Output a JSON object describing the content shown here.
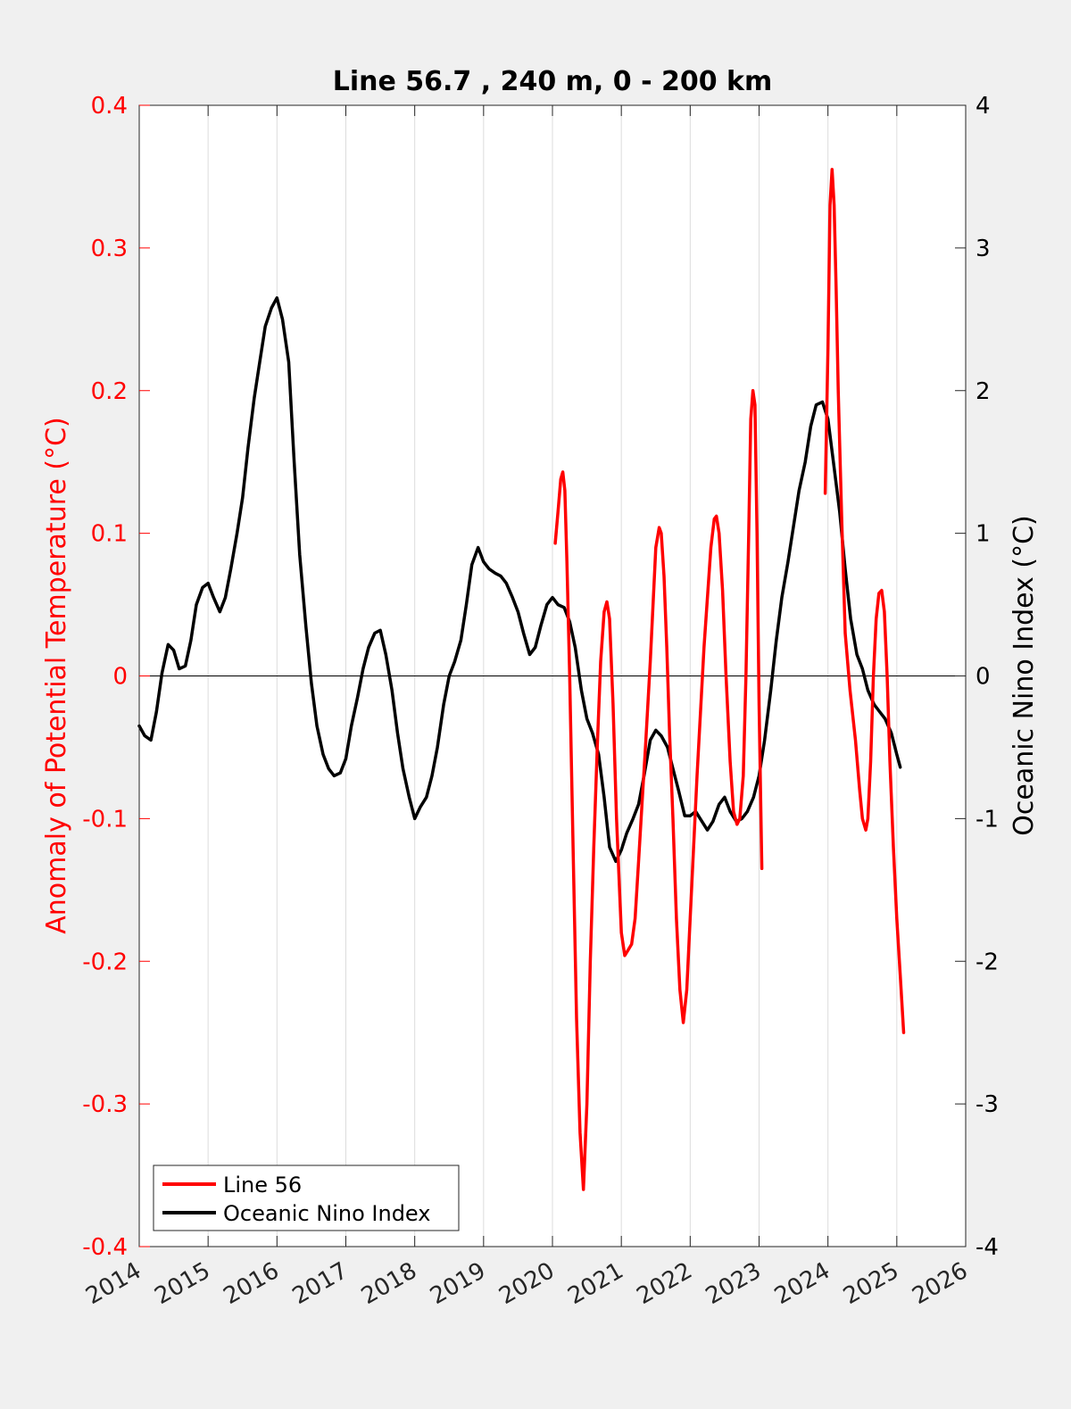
{
  "chart_data": {
    "type": "line",
    "title": "Line 56.7 , 240 m, 0 - 200 km",
    "ylabel_left": "Anomaly of Potential Temperature (°C)",
    "ylabel_right": "Oceanic Nino Index (°C)",
    "xlabel": "",
    "xlim": [
      2014,
      2026
    ],
    "ylim_left": [
      -0.4,
      0.4
    ],
    "ylim_right": [
      -4,
      4
    ],
    "x_ticks": [
      "2014",
      "2015",
      "2016",
      "2017",
      "2018",
      "2019",
      "2020",
      "2021",
      "2022",
      "2023",
      "2024",
      "2025",
      "2026"
    ],
    "y_ticks_left": [
      "-0.4",
      "-0.3",
      "-0.2",
      "-0.1",
      "0",
      "0.1",
      "0.2",
      "0.3",
      "0.4"
    ],
    "y_ticks_right": [
      "-4",
      "-3",
      "-2",
      "-1",
      "0",
      "1",
      "2",
      "3",
      "4"
    ],
    "grid": "vertical",
    "zero_line": true,
    "legend_position": "bottom-left",
    "series": [
      {
        "name": "Line 56",
        "axis": "left",
        "color": "#ff0000",
        "segments": [
          {
            "x": [
              2020.04,
              2020.08,
              2020.12,
              2020.15,
              2020.18,
              2020.21,
              2020.25,
              2020.3,
              2020.35,
              2020.4,
              2020.45,
              2020.5,
              2020.55,
              2020.6,
              2020.65,
              2020.7,
              2020.75,
              2020.79,
              2020.83,
              2020.88,
              2020.93,
              2021.0,
              2021.05,
              2021.1,
              2021.15,
              2021.2,
              2021.25,
              2021.3,
              2021.35,
              2021.42,
              2021.5,
              2021.55,
              2021.58,
              2021.62,
              2021.66,
              2021.7,
              2021.75,
              2021.8,
              2021.85,
              2021.9,
              2021.95,
              2022.0,
              2022.1,
              2022.2,
              2022.3,
              2022.35,
              2022.38,
              2022.42,
              2022.47,
              2022.52,
              2022.58,
              2022.63,
              2022.68,
              2022.72,
              2022.77,
              2022.81,
              2022.85,
              2022.88,
              2022.91,
              2022.94,
              2022.97,
              2023.0,
              2023.04
            ],
            "y": [
              0.093,
              0.115,
              0.138,
              0.143,
              0.13,
              0.08,
              0.0,
              -0.12,
              -0.24,
              -0.32,
              -0.36,
              -0.3,
              -0.2,
              -0.12,
              -0.05,
              0.01,
              0.045,
              0.052,
              0.04,
              -0.02,
              -0.1,
              -0.18,
              -0.196,
              -0.192,
              -0.188,
              -0.17,
              -0.13,
              -0.09,
              -0.05,
              0.01,
              0.09,
              0.104,
              0.1,
              0.07,
              0.02,
              -0.04,
              -0.1,
              -0.17,
              -0.22,
              -0.243,
              -0.22,
              -0.17,
              -0.07,
              0.02,
              0.09,
              0.11,
              0.112,
              0.1,
              0.06,
              0.0,
              -0.06,
              -0.095,
              -0.104,
              -0.1,
              -0.07,
              0.0,
              0.1,
              0.18,
              0.2,
              0.19,
              0.1,
              -0.02,
              -0.135
            ]
          },
          {
            "x": [
              2023.96,
              2024.0,
              2024.03,
              2024.06,
              2024.09,
              2024.12,
              2024.15,
              2024.2,
              2024.25,
              2024.32,
              2024.4,
              2024.46,
              2024.5,
              2024.55,
              2024.58,
              2024.62,
              2024.66,
              2024.7,
              2024.74,
              2024.78,
              2024.82,
              2024.86,
              2024.9,
              2024.95,
              2025.0,
              2025.05,
              2025.1
            ],
            "y": [
              0.128,
              0.23,
              0.33,
              0.355,
              0.33,
              0.27,
              0.2,
              0.11,
              0.03,
              -0.01,
              -0.045,
              -0.08,
              -0.1,
              -0.108,
              -0.1,
              -0.06,
              0.0,
              0.04,
              0.058,
              0.06,
              0.045,
              0.0,
              -0.06,
              -0.12,
              -0.17,
              -0.21,
              -0.25
            ]
          }
        ]
      },
      {
        "name": "Oceanic Nino Index",
        "axis": "right",
        "color": "#000000",
        "segments": [
          {
            "x": [
              2014.0,
              2014.08,
              2014.17,
              2014.25,
              2014.33,
              2014.42,
              2014.5,
              2014.58,
              2014.67,
              2014.75,
              2014.83,
              2014.92,
              2015.0,
              2015.08,
              2015.17,
              2015.25,
              2015.33,
              2015.42,
              2015.5,
              2015.58,
              2015.67,
              2015.75,
              2015.83,
              2015.92,
              2016.0,
              2016.08,
              2016.17,
              2016.25,
              2016.33,
              2016.42,
              2016.5,
              2016.58,
              2016.67,
              2016.75,
              2016.83,
              2016.92,
              2017.0,
              2017.08,
              2017.17,
              2017.25,
              2017.33,
              2017.42,
              2017.5,
              2017.58,
              2017.67,
              2017.75,
              2017.83,
              2017.92,
              2018.0,
              2018.08,
              2018.17,
              2018.25,
              2018.33,
              2018.42,
              2018.5,
              2018.58,
              2018.67,
              2018.75,
              2018.83,
              2018.92,
              2019.0,
              2019.08,
              2019.17,
              2019.25,
              2019.33,
              2019.42,
              2019.5,
              2019.58,
              2019.67,
              2019.75,
              2019.83,
              2019.92,
              2020.0,
              2020.08,
              2020.17,
              2020.25,
              2020.33,
              2020.42,
              2020.5,
              2020.58,
              2020.67,
              2020.75,
              2020.83,
              2020.92,
              2021.0,
              2021.08,
              2021.17,
              2021.25,
              2021.33,
              2021.42,
              2021.5,
              2021.58,
              2021.67,
              2021.75,
              2021.83,
              2021.92,
              2022.0,
              2022.08,
              2022.17,
              2022.25,
              2022.33,
              2022.42,
              2022.5,
              2022.58,
              2022.67,
              2022.75,
              2022.83,
              2022.92,
              2023.0,
              2023.08,
              2023.17,
              2023.25,
              2023.33,
              2023.42,
              2023.5,
              2023.58,
              2023.67,
              2023.75,
              2023.83,
              2023.92,
              2024.0,
              2024.08,
              2024.17,
              2024.25,
              2024.33,
              2024.42,
              2024.5,
              2024.58,
              2024.67,
              2024.75,
              2024.83,
              2024.92,
              2025.0,
              2025.05
            ],
            "y": [
              -0.35,
              -0.42,
              -0.45,
              -0.25,
              0.02,
              0.22,
              0.18,
              0.05,
              0.07,
              0.25,
              0.5,
              0.62,
              0.65,
              0.55,
              0.45,
              0.55,
              0.75,
              1.0,
              1.25,
              1.6,
              1.95,
              2.2,
              2.45,
              2.58,
              2.65,
              2.5,
              2.2,
              1.5,
              0.85,
              0.35,
              -0.05,
              -0.35,
              -0.55,
              -0.65,
              -0.7,
              -0.68,
              -0.58,
              -0.35,
              -0.15,
              0.05,
              0.2,
              0.3,
              0.32,
              0.15,
              -0.1,
              -0.4,
              -0.65,
              -0.85,
              -1.0,
              -0.92,
              -0.85,
              -0.7,
              -0.5,
              -0.2,
              0.0,
              0.1,
              0.25,
              0.5,
              0.78,
              0.9,
              0.8,
              0.75,
              0.72,
              0.7,
              0.65,
              0.55,
              0.45,
              0.3,
              0.15,
              0.2,
              0.35,
              0.5,
              0.55,
              0.5,
              0.48,
              0.38,
              0.2,
              -0.1,
              -0.3,
              -0.4,
              -0.55,
              -0.85,
              -1.2,
              -1.3,
              -1.22,
              -1.1,
              -1.0,
              -0.9,
              -0.7,
              -0.45,
              -0.38,
              -0.42,
              -0.5,
              -0.65,
              -0.8,
              -0.98,
              -0.98,
              -0.95,
              -1.02,
              -1.08,
              -1.02,
              -0.9,
              -0.85,
              -0.95,
              -1.02,
              -1.0,
              -0.95,
              -0.85,
              -0.7,
              -0.45,
              -0.1,
              0.25,
              0.55,
              0.8,
              1.05,
              1.3,
              1.5,
              1.75,
              1.9,
              1.92,
              1.8,
              1.5,
              1.15,
              0.75,
              0.4,
              0.15,
              0.05,
              -0.1,
              -0.2,
              -0.25,
              -0.3,
              -0.4,
              -0.55,
              -0.64
            ]
          }
        ]
      }
    ]
  }
}
